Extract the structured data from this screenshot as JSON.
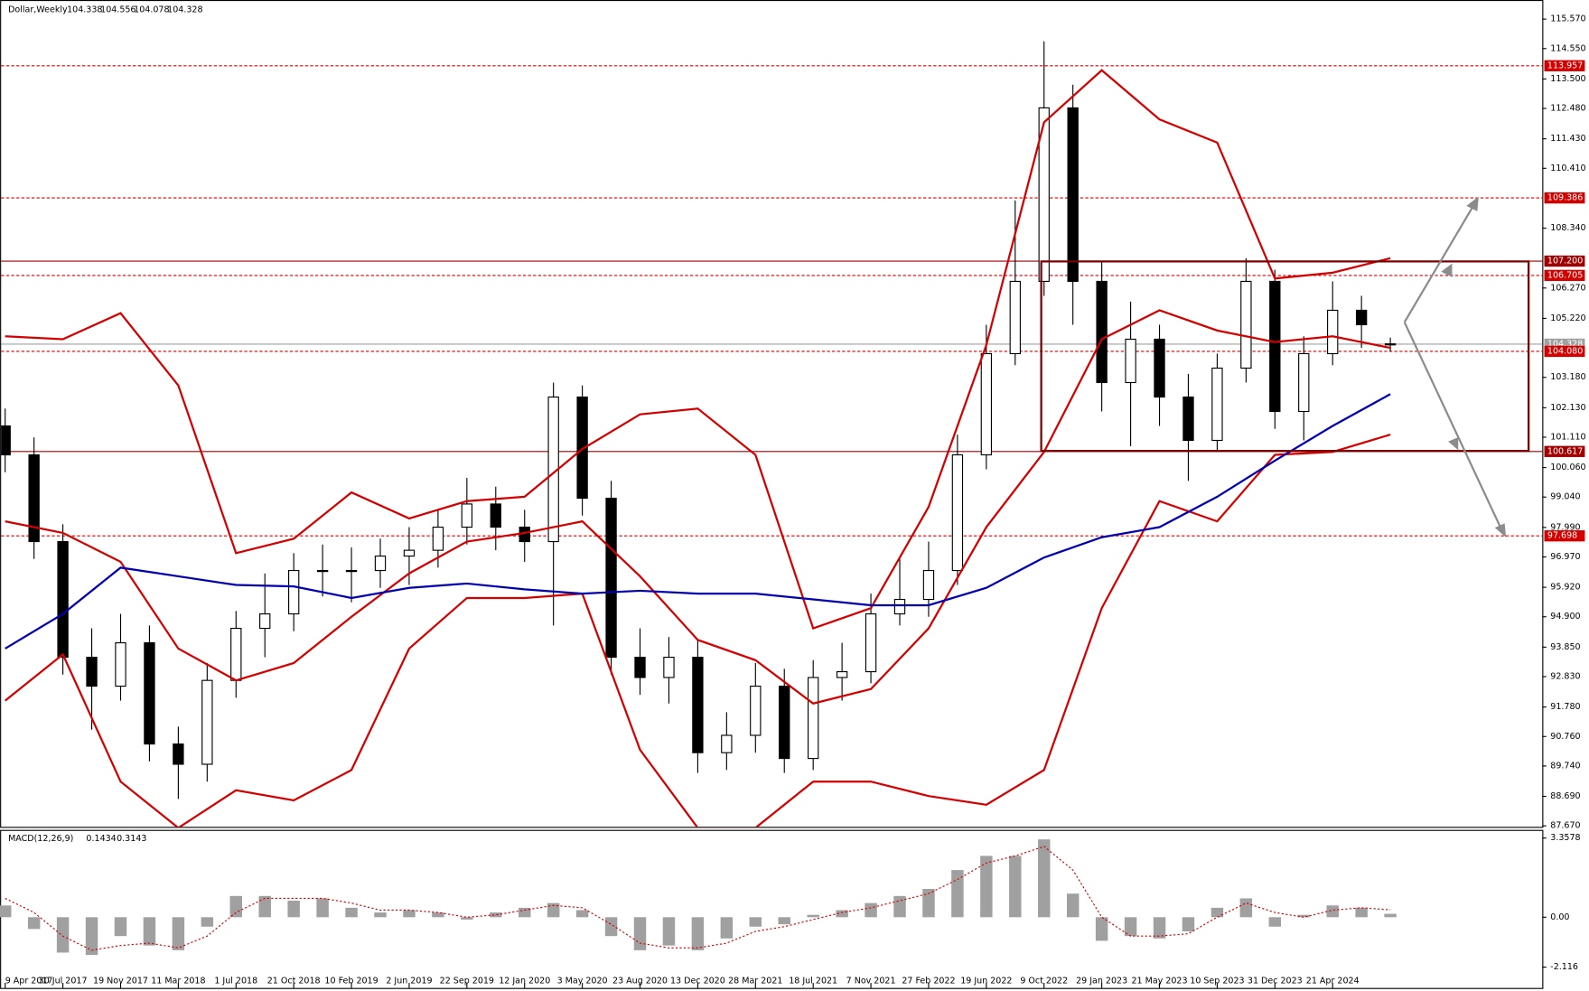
{
  "chart_data": [
    {
      "type": "candlestick",
      "title": "Dollar,Weekly",
      "categories": [
        "9 Apr 2017",
        "30 Jul 2017",
        "19 Nov 2017",
        "11 Mar 2018",
        "1 Jul 2018",
        "21 Oct 2018",
        "10 Feb 2019",
        "2 Jun 2019",
        "22 Sep 2019",
        "12 Jan 2020",
        "3 May 2020",
        "23 Aug 2020",
        "13 Dec 2020",
        "28 Mar 2021",
        "18 Jul 2021",
        "7 Nov 2021",
        "27 Feb 2022",
        "19 Jun 2022",
        "9 Oct 2022",
        "29 Jan 2023",
        "21 May 2023",
        "10 Sep 2023",
        "31 Dec 2023",
        "21 Apr 2024"
      ],
      "open": [
        101.5,
        100.5,
        97.5,
        93.5,
        92.5,
        94.0,
        90.5,
        89.8,
        92.7,
        94.5,
        95.0,
        96.5,
        96.5,
        96.5,
        97.0,
        97.2,
        98.0,
        98.8,
        98.0,
        97.5,
        102.5,
        99.0,
        93.5,
        92.8,
        93.5,
        90.2,
        90.8,
        92.5,
        90.0,
        92.8,
        93.0,
        95.0,
        95.5,
        96.5,
        100.5,
        104.0,
        106.5,
        112.5,
        106.5,
        103.0,
        104.5,
        102.5,
        101.0,
        103.5,
        106.5,
        102.0,
        104.0,
        105.5,
        104.338
      ],
      "high": [
        102.1,
        101.1,
        98.1,
        94.5,
        95.0,
        94.6,
        91.1,
        93.3,
        95.1,
        96.4,
        97.1,
        97.4,
        97.3,
        97.6,
        98.0,
        98.6,
        99.7,
        99.4,
        98.6,
        103.0,
        102.9,
        99.6,
        94.5,
        94.2,
        94.1,
        91.6,
        93.3,
        93.1,
        93.4,
        94.0,
        95.7,
        96.9,
        97.5,
        101.2,
        105.0,
        109.3,
        114.8,
        113.3,
        107.2,
        105.8,
        105.0,
        103.3,
        104.0,
        107.3,
        106.9,
        104.6,
        106.5,
        106.0,
        104.556
      ],
      "low": [
        99.9,
        96.9,
        92.9,
        91.0,
        92.0,
        89.9,
        88.6,
        89.2,
        92.1,
        93.5,
        94.4,
        95.6,
        95.4,
        95.9,
        96.0,
        96.6,
        97.4,
        97.2,
        96.8,
        94.6,
        98.4,
        92.9,
        92.2,
        91.9,
        89.5,
        89.6,
        90.2,
        89.5,
        89.6,
        92.0,
        92.6,
        94.6,
        94.9,
        96.0,
        100.0,
        103.6,
        106.0,
        105.0,
        102.0,
        100.8,
        101.5,
        99.6,
        100.6,
        103.0,
        101.4,
        101.0,
        103.6,
        104.2,
        104.078
      ],
      "close": [
        100.5,
        97.5,
        93.5,
        92.5,
        94.0,
        90.5,
        89.8,
        92.7,
        94.5,
        95.0,
        96.5,
        96.5,
        96.5,
        97.0,
        97.2,
        98.0,
        98.8,
        98.0,
        97.5,
        102.5,
        99.0,
        93.5,
        92.8,
        93.5,
        90.2,
        90.8,
        92.5,
        90.0,
        92.8,
        93.0,
        95.0,
        95.5,
        96.5,
        100.5,
        104.0,
        106.5,
        112.5,
        106.5,
        103.0,
        104.5,
        102.5,
        101.0,
        103.5,
        106.5,
        102.0,
        104.0,
        105.5,
        105.0,
        104.328
      ],
      "bands": [
        {
          "color": "#d40000",
          "values": [
            104.6,
            104.5,
            105.4,
            102.9,
            97.1,
            97.6,
            99.2,
            98.3,
            98.9,
            99.05,
            100.7,
            101.9,
            102.1,
            100.5,
            94.5,
            95.2,
            98.7,
            104.3,
            112.0,
            113.8,
            112.1,
            111.3,
            106.6,
            106.8,
            107.3
          ]
        },
        {
          "color": "#d40000",
          "values": [
            98.2,
            97.8,
            96.8,
            93.8,
            92.7,
            93.3,
            94.9,
            96.4,
            97.5,
            97.8,
            98.2,
            96.3,
            94.1,
            93.4,
            91.9,
            92.4,
            94.5,
            98.0,
            100.6,
            104.5,
            105.5,
            104.8,
            104.4,
            104.6,
            104.2
          ]
        },
        {
          "color": "#d40000",
          "values": [
            92.0,
            93.6,
            89.2,
            87.6,
            88.9,
            88.55,
            89.6,
            93.8,
            95.55,
            95.55,
            95.7,
            90.3,
            87.6,
            87.6,
            89.2,
            89.2,
            88.7,
            88.4,
            89.6,
            95.2,
            98.9,
            98.2,
            100.5,
            100.6,
            101.2
          ]
        },
        {
          "color": "#0000b0",
          "values": [
            93.8,
            95.0,
            96.6,
            96.3,
            96.0,
            95.95,
            95.55,
            95.9,
            96.05,
            95.85,
            95.7,
            95.8,
            95.7,
            95.7,
            95.5,
            95.3,
            95.3,
            95.9,
            96.95,
            97.65,
            98.0,
            99.05,
            100.3,
            101.5,
            102.6
          ]
        }
      ],
      "ylim": [
        87.6,
        115.95
      ],
      "yticks": [
        {
          "value": 115.57,
          "label": "115.570"
        },
        {
          "value": 114.55,
          "label": "114.550"
        },
        {
          "value": 113.5,
          "label": "113.500"
        },
        {
          "value": 112.48,
          "label": "112.480"
        },
        {
          "value": 111.43,
          "label": "111.430"
        },
        {
          "value": 110.41,
          "label": "110.410"
        },
        {
          "value": 108.34,
          "label": "108.340"
        },
        {
          "value": 106.27,
          "label": "106.270"
        },
        {
          "value": 105.22,
          "label": "105.220"
        },
        {
          "value": 103.18,
          "label": "103.180"
        },
        {
          "value": 102.13,
          "label": "102.130"
        },
        {
          "value": 101.11,
          "label": "101.110"
        },
        {
          "value": 100.06,
          "label": "100.060"
        },
        {
          "value": 99.04,
          "label": "99.040"
        },
        {
          "value": 97.99,
          "label": "97.990"
        },
        {
          "value": 96.97,
          "label": "96.970"
        },
        {
          "value": 95.92,
          "label": "95.920"
        },
        {
          "value": 94.9,
          "label": "94.900"
        },
        {
          "value": 93.85,
          "label": "93.850"
        },
        {
          "value": 92.83,
          "label": "92.830"
        },
        {
          "value": 91.78,
          "label": "91.780"
        },
        {
          "value": 90.76,
          "label": "90.760"
        },
        {
          "value": 89.74,
          "label": "89.740"
        },
        {
          "value": 88.69,
          "label": "88.690"
        },
        {
          "value": 87.67,
          "label": "87.670"
        }
      ],
      "levels": [
        {
          "value": 113.957,
          "style": "dashed",
          "color": "#d40000"
        },
        {
          "value": 109.386,
          "style": "dashed",
          "color": "#d40000"
        },
        {
          "value": 107.2,
          "label": "107.200",
          "style": "solid",
          "color": "#a00000"
        },
        {
          "value": 106.705,
          "style": "dashed",
          "color": "#d40000"
        },
        {
          "value": 104.328,
          "style": "solid",
          "color": "#a0a0a0"
        },
        {
          "value": 104.08,
          "label": "104.080",
          "style": "dashed",
          "color": "#d40000"
        },
        {
          "value": 100.617,
          "style": "solid",
          "color": "#a00000"
        },
        {
          "value": 97.698,
          "style": "dashed",
          "color": "#d40000"
        }
      ]
    },
    {
      "type": "histogram",
      "title": "MACD(12,26,9)",
      "values": [
        0.5,
        -0.5,
        -1.5,
        -1.6,
        -0.8,
        -1.2,
        -1.4,
        -0.4,
        0.9,
        0.9,
        0.7,
        0.8,
        0.4,
        0.2,
        0.3,
        0.2,
        -0.1,
        0.2,
        0.4,
        0.6,
        0.3,
        -0.8,
        -1.4,
        -1.2,
        -1.4,
        -0.9,
        -0.4,
        -0.3,
        0.1,
        0.3,
        0.6,
        0.9,
        1.2,
        2.0,
        2.6,
        2.6,
        3.3,
        1.0,
        -1.0,
        -0.8,
        -0.9,
        -0.6,
        0.4,
        0.8,
        -0.4,
        0.1,
        0.5,
        0.4,
        0.1434
      ],
      "signal": [
        0.8,
        0.2,
        -0.8,
        -1.4,
        -1.2,
        -1.1,
        -1.3,
        -0.8,
        0.2,
        0.8,
        0.8,
        0.8,
        0.6,
        0.3,
        0.3,
        0.2,
        0.0,
        0.1,
        0.3,
        0.5,
        0.4,
        -0.3,
        -1.1,
        -1.3,
        -1.3,
        -1.1,
        -0.6,
        -0.4,
        -0.1,
        0.2,
        0.4,
        0.7,
        1.0,
        1.6,
        2.3,
        2.6,
        3.0,
        2.0,
        0.0,
        -0.8,
        -0.8,
        -0.7,
        0.0,
        0.6,
        0.2,
        0.0,
        0.3,
        0.4,
        0.3143
      ],
      "color": "#a0a0a0",
      "signal_color": "#d40000",
      "ylim": [
        -3.0,
        3.66
      ],
      "yticks": [
        3.3578,
        {
          "value": 0,
          "label": "0.00"
        },
        -2.116
      ]
    }
  ]
}
